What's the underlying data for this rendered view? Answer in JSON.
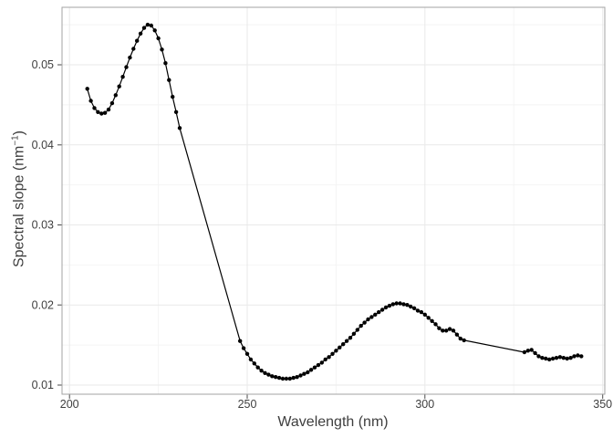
{
  "figure": {
    "background": "#ffffff"
  },
  "chart_data": {
    "type": "line",
    "mode": "lines+markers",
    "title": "",
    "xlabel": "Wavelength (nm)",
    "ylabel": "Spectral slope (nm⁻¹)",
    "ylabel_parts": {
      "pre": "Spectral slope (nm",
      "sup": "−1",
      "post": ")"
    },
    "xlim": [
      197.9,
      350.6
    ],
    "ylim": [
      0.00886,
      0.05718
    ],
    "x_ticks": [
      200,
      250,
      300,
      350
    ],
    "x_tick_labels": [
      "200",
      "250",
      "300",
      "350"
    ],
    "y_ticks": [
      0.01,
      0.02,
      0.03,
      0.04,
      0.05
    ],
    "y_tick_labels": [
      "0.01",
      "0.02",
      "0.03",
      "0.04",
      "0.05"
    ],
    "x_minor_ticks": [
      225,
      275,
      325
    ],
    "y_minor_ticks": [
      0.015,
      0.025,
      0.035,
      0.045,
      0.055
    ],
    "grid": true,
    "legend": "none",
    "colors": {
      "background": "#ffffff",
      "panel_border": "#a3a3a3",
      "grid_major": "#e9e9e9",
      "grid_minor": "#f4f4f4",
      "tick_mark": "#4a4a4a",
      "tick_text": "#3e3e3e",
      "series": "#000000"
    },
    "series": [
      {
        "name": "spectral slope",
        "line_color": "#000000",
        "marker_color": "#000000",
        "points": [
          [
            205,
            0.047
          ],
          [
            206,
            0.0455
          ],
          [
            207,
            0.0446
          ],
          [
            208,
            0.0441
          ],
          [
            209,
            0.0439
          ],
          [
            210,
            0.044
          ],
          [
            211,
            0.0444
          ],
          [
            212,
            0.0452
          ],
          [
            213,
            0.0462
          ],
          [
            214,
            0.0473
          ],
          [
            215,
            0.0485
          ],
          [
            216,
            0.0497
          ],
          [
            217,
            0.0509
          ],
          [
            218,
            0.052
          ],
          [
            219,
            0.053
          ],
          [
            220,
            0.0539
          ],
          [
            221,
            0.0546
          ],
          [
            222,
            0.055
          ],
          [
            223,
            0.0549
          ],
          [
            224,
            0.0543
          ],
          [
            225,
            0.0533
          ],
          [
            226,
            0.0519
          ],
          [
            227,
            0.0502
          ],
          [
            228,
            0.0481
          ],
          [
            229,
            0.046
          ],
          [
            230,
            0.0441
          ],
          [
            231,
            0.0421
          ],
          [
            248,
            0.0155
          ],
          [
            249,
            0.0146
          ],
          [
            250,
            0.0139
          ],
          [
            251,
            0.0132
          ],
          [
            252,
            0.0127
          ],
          [
            253,
            0.0122
          ],
          [
            254,
            0.0118
          ],
          [
            255,
            0.0115
          ],
          [
            256,
            0.0113
          ],
          [
            257,
            0.0111
          ],
          [
            258,
            0.011
          ],
          [
            259,
            0.0109
          ],
          [
            260,
            0.0108
          ],
          [
            261,
            0.0108
          ],
          [
            262,
            0.0108
          ],
          [
            263,
            0.0109
          ],
          [
            264,
            0.011
          ],
          [
            265,
            0.0112
          ],
          [
            266,
            0.0114
          ],
          [
            267,
            0.0116
          ],
          [
            268,
            0.0119
          ],
          [
            269,
            0.0122
          ],
          [
            270,
            0.0125
          ],
          [
            271,
            0.0128
          ],
          [
            272,
            0.0132
          ],
          [
            273,
            0.0135
          ],
          [
            274,
            0.0139
          ],
          [
            275,
            0.0143
          ],
          [
            276,
            0.0147
          ],
          [
            277,
            0.0151
          ],
          [
            278,
            0.0155
          ],
          [
            279,
            0.0159
          ],
          [
            280,
            0.0164
          ],
          [
            281,
            0.0169
          ],
          [
            282,
            0.0174
          ],
          [
            283,
            0.0178
          ],
          [
            284,
            0.0182
          ],
          [
            285,
            0.0185
          ],
          [
            286,
            0.0188
          ],
          [
            287,
            0.0191
          ],
          [
            288,
            0.0194
          ],
          [
            289,
            0.0197
          ],
          [
            290,
            0.0199
          ],
          [
            291,
            0.0201
          ],
          [
            292,
            0.0202
          ],
          [
            293,
            0.0202
          ],
          [
            294,
            0.0201
          ],
          [
            295,
            0.02
          ],
          [
            296,
            0.0198
          ],
          [
            297,
            0.0196
          ],
          [
            298,
            0.0193
          ],
          [
            299,
            0.0191
          ],
          [
            300,
            0.0188
          ],
          [
            301,
            0.0184
          ],
          [
            302,
            0.018
          ],
          [
            303,
            0.0176
          ],
          [
            304,
            0.0171
          ],
          [
            305,
            0.0168
          ],
          [
            306,
            0.0168
          ],
          [
            307,
            0.017
          ],
          [
            308,
            0.0168
          ],
          [
            309,
            0.0163
          ],
          [
            310,
            0.0158
          ],
          [
            311,
            0.0156
          ],
          [
            328,
            0.0141
          ],
          [
            329,
            0.0143
          ],
          [
            330,
            0.0144
          ],
          [
            331,
            0.014
          ],
          [
            332,
            0.0136
          ],
          [
            333,
            0.0134
          ],
          [
            334,
            0.0133
          ],
          [
            335,
            0.0132
          ],
          [
            336,
            0.0133
          ],
          [
            337,
            0.0134
          ],
          [
            338,
            0.0135
          ],
          [
            339,
            0.0134
          ],
          [
            340,
            0.0133
          ],
          [
            341,
            0.0134
          ],
          [
            342,
            0.0136
          ],
          [
            343,
            0.0137
          ],
          [
            344,
            0.0136
          ]
        ]
      }
    ]
  }
}
